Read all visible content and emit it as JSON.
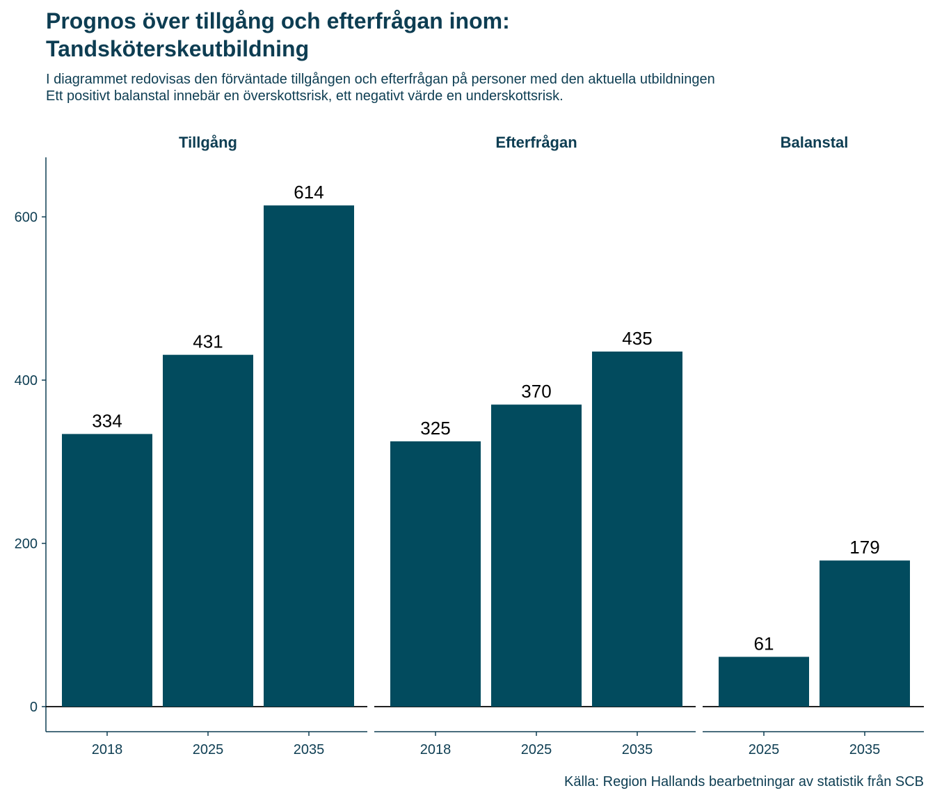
{
  "title_line1": "Prognos över tillgång och efterfrågan inom:",
  "title_line2": "Tandsköterskeutbildning",
  "subtitle_line1": "I diagrammet redovisas den förväntade tillgången och efterfrågan på personer med den aktuella utbildningen",
  "subtitle_line2": "Ett positivt balanstal innebär en överskottsrisk, ett negativt värde en underskottsrisk.",
  "caption": "Källa: Region Hallands bearbetningar av statistik från SCB",
  "colors": {
    "bar": "#024b5e",
    "text": "#0d3d52",
    "label": "#000000"
  },
  "chart_data": {
    "type": "bar",
    "ylim": [
      0,
      680
    ],
    "yticks": [
      0,
      200,
      400,
      600
    ],
    "grid": false,
    "legend": "none",
    "panels": [
      {
        "name": "Tillgång",
        "categories": [
          "2018",
          "2025",
          "2035"
        ],
        "values": [
          334,
          431,
          614
        ]
      },
      {
        "name": "Efterfrågan",
        "categories": [
          "2018",
          "2025",
          "2035"
        ],
        "values": [
          325,
          370,
          435
        ]
      },
      {
        "name": "Balanstal",
        "categories": [
          "2025",
          "2035"
        ],
        "values": [
          61,
          179
        ]
      }
    ]
  }
}
